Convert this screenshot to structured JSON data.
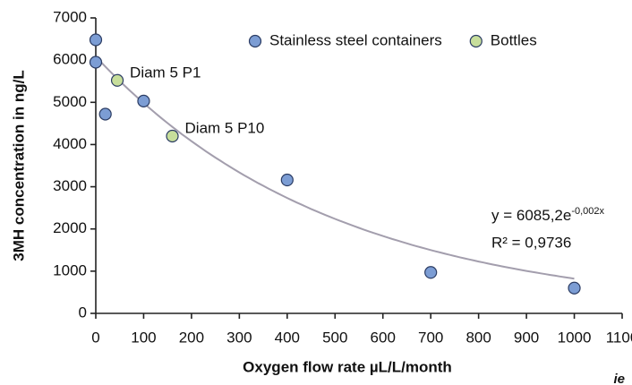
{
  "chart_data": {
    "type": "scatter",
    "xlabel": "Oxygen flow rate µL/L/month",
    "ylabel": "3MH concentration in ng/L",
    "xlim": [
      0,
      1100
    ],
    "xticks": [
      0,
      100,
      200,
      300,
      400,
      500,
      600,
      700,
      800,
      900,
      1000,
      1100
    ],
    "ylim": [
      0,
      7000
    ],
    "yticks": [
      0,
      1000,
      2000,
      3000,
      4000,
      5000,
      6000,
      7000
    ],
    "legend": "top",
    "series": [
      {
        "name": "Stainless steel containers",
        "color": "#7c9dd4",
        "x": [
          0,
          0,
          20,
          100,
          400,
          700,
          1000
        ],
        "values": [
          6480,
          5950,
          4720,
          5030,
          3160,
          970,
          600
        ]
      },
      {
        "name": "Bottles",
        "color": "#c7de9b",
        "x": [
          45,
          160
        ],
        "values": [
          5520,
          4200
        ],
        "labels": [
          "Diam 5 P1",
          "Diam 5 P10"
        ]
      }
    ],
    "trendline": {
      "a": 6085.2,
      "b": -0.002,
      "color": "#a39ead",
      "equation": "y = 6085,2e",
      "exponent": "-0,002x",
      "r2_label": "R² = 0,9736"
    },
    "logo": "ie"
  }
}
